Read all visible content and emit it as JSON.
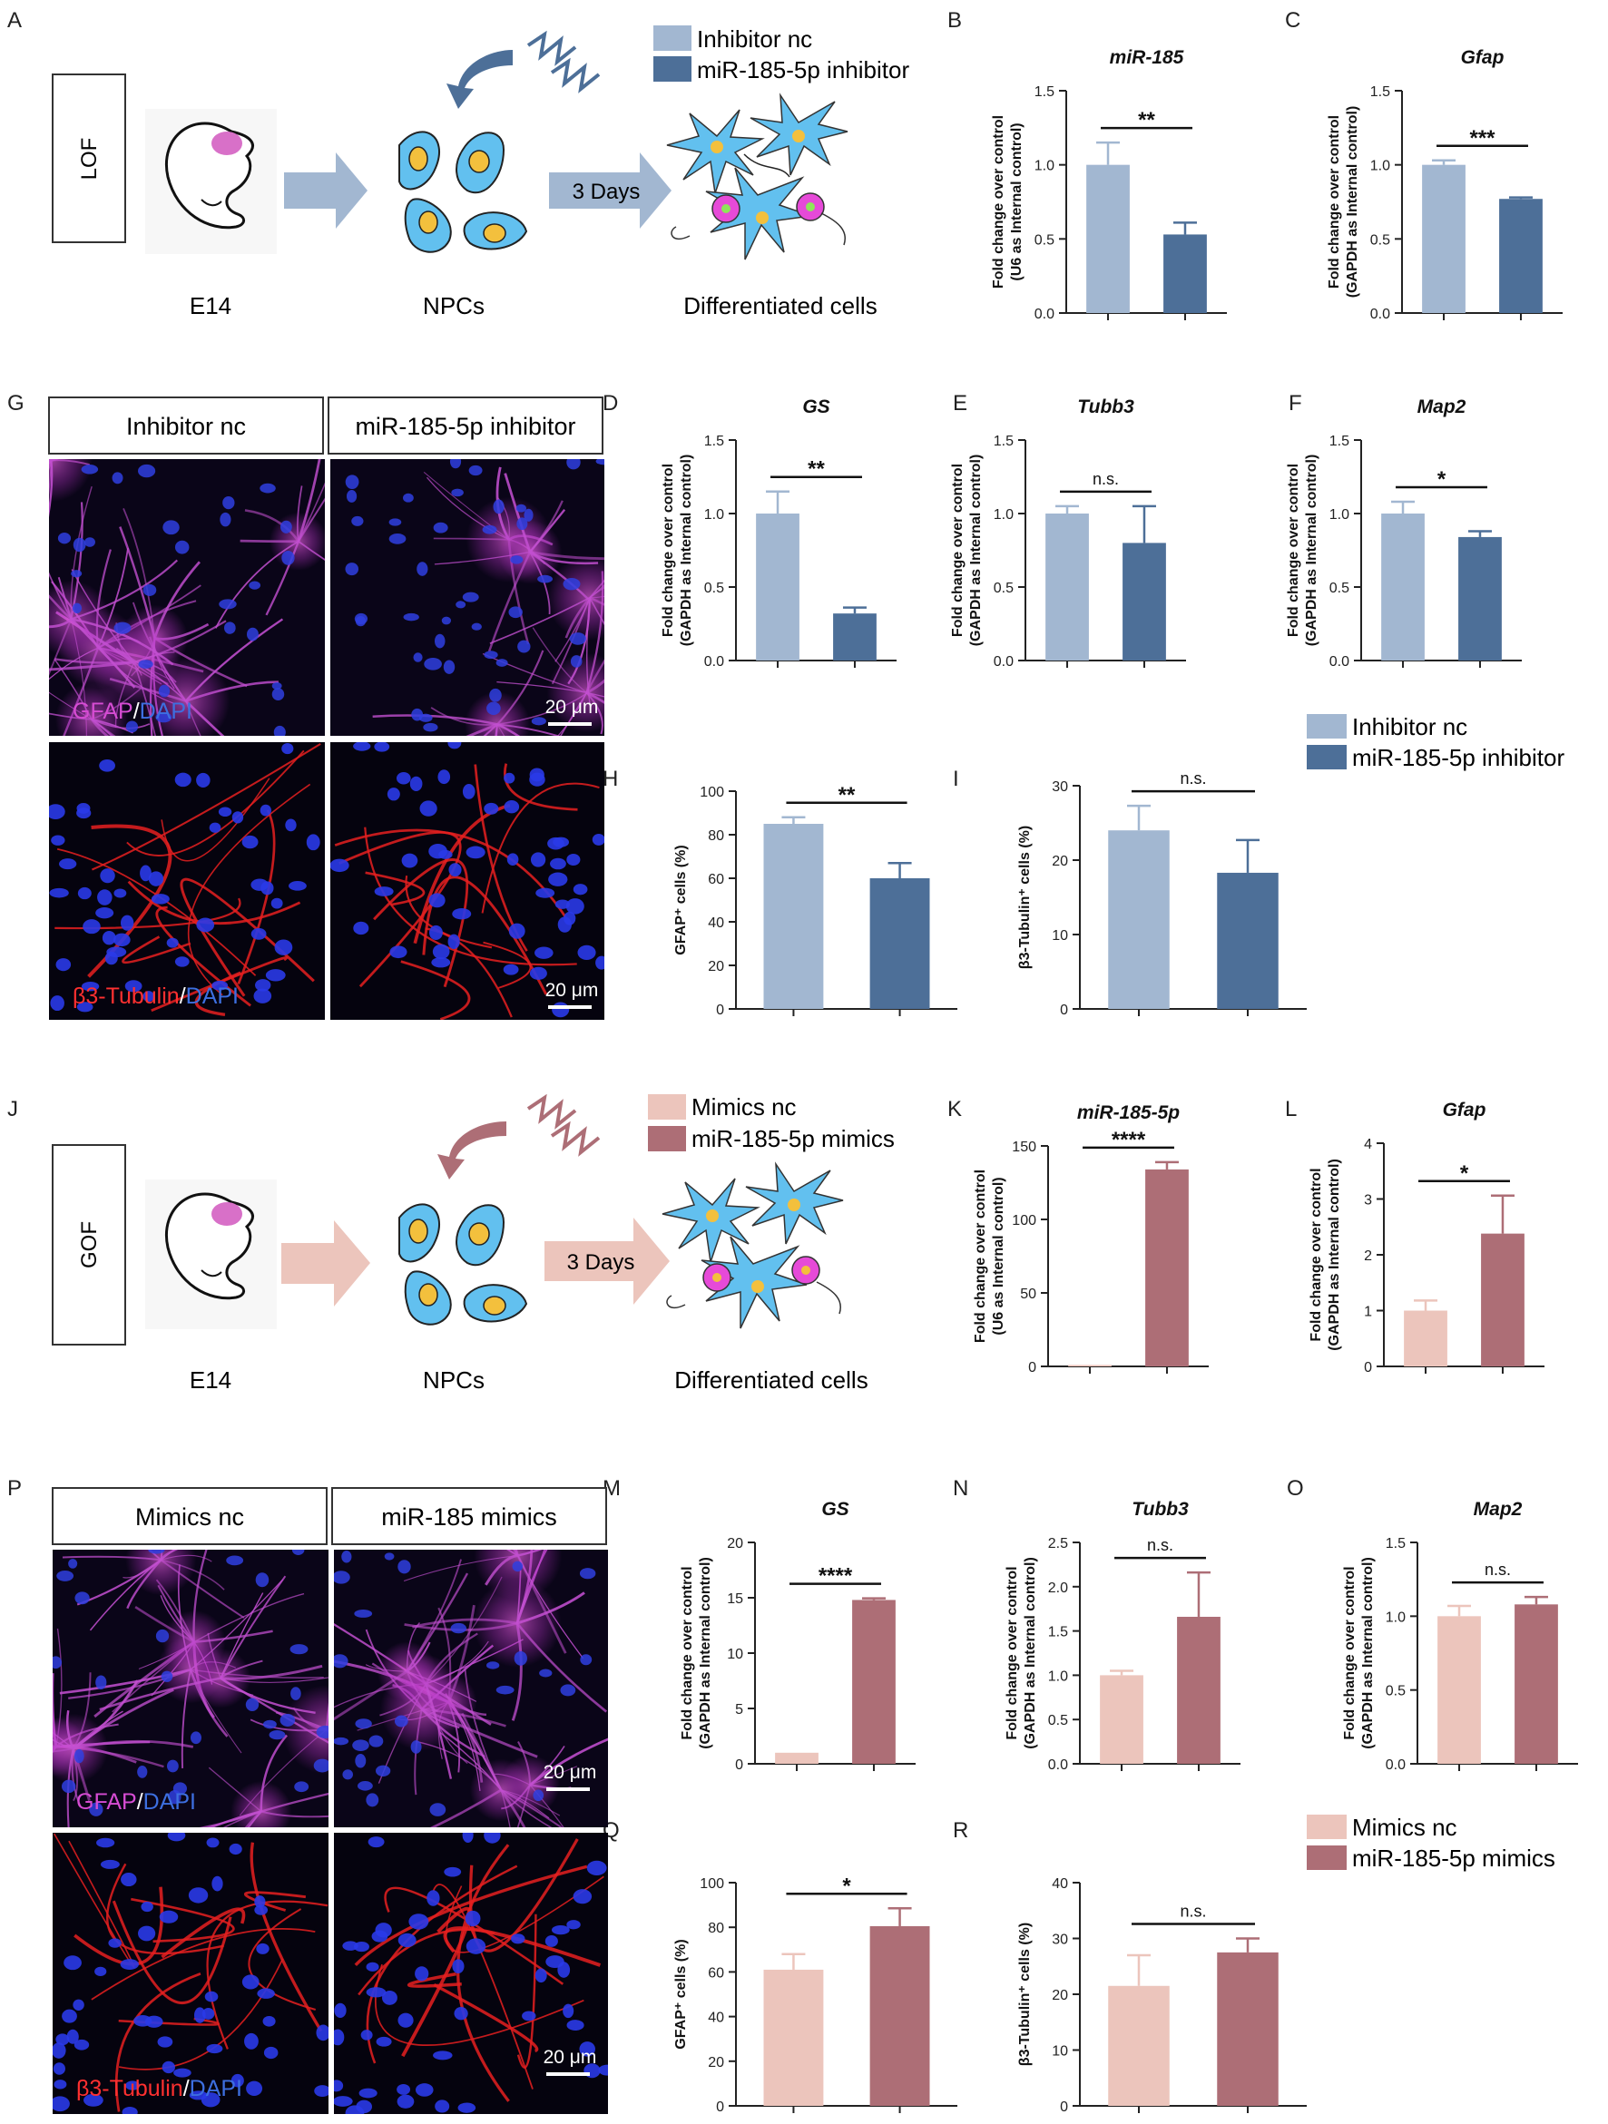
{
  "colors": {
    "lof_light": "#a2b7d1",
    "lof_dark": "#4d6f98",
    "gof_light": "#ecc5bc",
    "gof_dark": "#ad6e76",
    "cell_fill": "#62c0ef",
    "nucleus_fill": "#f3c03d",
    "magenta": "#e64ad8",
    "embryo_pink": "#d870c8"
  },
  "panel_letters": {
    "A": "A",
    "B": "B",
    "C": "C",
    "D": "D",
    "E": "E",
    "F": "F",
    "G": "G",
    "H": "H",
    "I": "I",
    "J": "J",
    "K": "K",
    "L": "L",
    "M": "M",
    "N": "N",
    "O": "O",
    "P": "P",
    "Q": "Q",
    "R": "R"
  },
  "schematics": {
    "lof": {
      "box_label": "LOF",
      "stage": "E14",
      "npcs": "NPCs",
      "days": "3 Days",
      "result": "Differentiated cells",
      "legend": [
        "Inhibitor nc",
        "miR-185-5p inhibitor"
      ]
    },
    "gof": {
      "box_label": "GOF",
      "stage": "E14",
      "npcs": "NPCs",
      "days": "3 Days",
      "result": "Differentiated cells",
      "legend": [
        "Mimics nc",
        "miR-185-5p mimics"
      ]
    }
  },
  "legends": {
    "lof": [
      "Inhibitor nc",
      "miR-185-5p inhibitor"
    ],
    "gof": [
      "Mimics nc",
      "miR-185-5p mimics"
    ]
  },
  "micrographs": {
    "G": {
      "headers": [
        "Inhibitor nc",
        "miR-185-5p inhibitor"
      ],
      "row1_label": [
        "GFAP",
        "/",
        "DAPI"
      ],
      "row2_label": [
        "β3-Tubulin",
        "/",
        "DAPI"
      ],
      "scale": "20 μm"
    },
    "P": {
      "headers": [
        "Mimics nc",
        "miR-185 mimics"
      ],
      "row1_label": [
        "GFAP",
        "/",
        "DAPI"
      ],
      "row2_label": [
        "β3-Tubulin",
        "/",
        "DAPI"
      ],
      "scale": "20 μm"
    }
  },
  "chart_data": [
    {
      "panel": "B",
      "type": "bar",
      "title": "miR-185",
      "ylabel": [
        "Fold change over control",
        "(U6 as Internal control)"
      ],
      "ylim": [
        0,
        1.5
      ],
      "ticks": [
        0.0,
        0.5,
        1.0,
        1.5
      ],
      "tick_labels": [
        "0.0",
        "0.5",
        "1.0",
        "1.5"
      ],
      "group": "lof",
      "values": [
        1.0,
        0.53
      ],
      "errors": [
        0.15,
        0.08
      ],
      "significance": "**"
    },
    {
      "panel": "C",
      "type": "bar",
      "title": "Gfap",
      "ylabel": [
        "Fold change over control",
        "(GAPDH as Internal control)"
      ],
      "ylim": [
        0,
        1.5
      ],
      "ticks": [
        0.0,
        0.5,
        1.0,
        1.5
      ],
      "tick_labels": [
        "0.0",
        "0.5",
        "1.0",
        "1.5"
      ],
      "group": "lof",
      "values": [
        1.0,
        0.77
      ],
      "errors": [
        0.03,
        0.01
      ],
      "significance": "***"
    },
    {
      "panel": "D",
      "type": "bar",
      "title": "GS",
      "ylabel": [
        "Fold change over control",
        "(GAPDH as Internal control)"
      ],
      "ylim": [
        0,
        1.5
      ],
      "ticks": [
        0.0,
        0.5,
        1.0,
        1.5
      ],
      "tick_labels": [
        "0.0",
        "0.5",
        "1.0",
        "1.5"
      ],
      "group": "lof",
      "values": [
        1.0,
        0.32
      ],
      "errors": [
        0.15,
        0.04
      ],
      "significance": "**"
    },
    {
      "panel": "E",
      "type": "bar",
      "title": "Tubb3",
      "ylabel": [
        "Fold change over control",
        "(GAPDH as Internal control)"
      ],
      "ylim": [
        0,
        1.5
      ],
      "ticks": [
        0.0,
        0.5,
        1.0,
        1.5
      ],
      "tick_labels": [
        "0.0",
        "0.5",
        "1.0",
        "1.5"
      ],
      "group": "lof",
      "values": [
        1.0,
        0.8
      ],
      "errors": [
        0.05,
        0.25
      ],
      "significance": "n.s."
    },
    {
      "panel": "F",
      "type": "bar",
      "title": "Map2",
      "ylabel": [
        "Fold change over control",
        "(GAPDH as Internal control)"
      ],
      "ylim": [
        0,
        1.5
      ],
      "ticks": [
        0.0,
        0.5,
        1.0,
        1.5
      ],
      "tick_labels": [
        "0.0",
        "0.5",
        "1.0",
        "1.5"
      ],
      "group": "lof",
      "values": [
        1.0,
        0.84
      ],
      "errors": [
        0.08,
        0.04
      ],
      "significance": "*"
    },
    {
      "panel": "H",
      "type": "bar",
      "title": "",
      "ylabel": [
        "GFAP⁺ cells (%)"
      ],
      "ylim": [
        0,
        100
      ],
      "ticks": [
        0,
        20,
        40,
        60,
        80,
        100
      ],
      "tick_labels": [
        "0",
        "20",
        "40",
        "60",
        "80",
        "100"
      ],
      "group": "lof",
      "values": [
        85,
        60
      ],
      "errors": [
        3,
        7
      ],
      "significance": "**"
    },
    {
      "panel": "I",
      "type": "bar",
      "title": "",
      "ylabel": [
        "β3-Tubulin⁺ cells (%)"
      ],
      "ylim": [
        0,
        30
      ],
      "ticks": [
        0,
        10,
        20,
        30
      ],
      "tick_labels": [
        "0",
        "10",
        "20",
        "30"
      ],
      "group": "lof",
      "values": [
        24,
        18.3
      ],
      "errors": [
        3.3,
        4.4
      ],
      "significance": "n.s."
    },
    {
      "panel": "K",
      "type": "bar",
      "title": "miR-185-5p",
      "ylabel": [
        "Fold change over control",
        "(U6 as Internal control)"
      ],
      "ylim": [
        0,
        150
      ],
      "ticks": [
        0,
        50,
        100,
        150
      ],
      "tick_labels": [
        "0",
        "50",
        "100",
        "150"
      ],
      "group": "gof",
      "values": [
        1,
        134
      ],
      "errors": [
        0,
        5
      ],
      "significance": "****"
    },
    {
      "panel": "L",
      "type": "bar",
      "title": "Gfap",
      "ylabel": [
        "Fold change over control",
        "(GAPDH as Internal control)"
      ],
      "ylim": [
        0,
        4
      ],
      "ticks": [
        0,
        1,
        2,
        3,
        4
      ],
      "tick_labels": [
        "0",
        "1",
        "2",
        "3",
        "4"
      ],
      "group": "gof",
      "values": [
        1.0,
        2.38
      ],
      "errors": [
        0.18,
        0.68
      ],
      "significance": "*"
    },
    {
      "panel": "M",
      "type": "bar",
      "title": "GS",
      "ylabel": [
        "Fold change over control",
        "(GAPDH as Internal control)"
      ],
      "ylim": [
        0,
        20
      ],
      "ticks": [
        0,
        5,
        10,
        15,
        20
      ],
      "tick_labels": [
        "0",
        "5",
        "10",
        "15",
        "20"
      ],
      "group": "gof",
      "values": [
        1.0,
        14.8
      ],
      "errors": [
        0,
        0.15
      ],
      "significance": "****"
    },
    {
      "panel": "N",
      "type": "bar",
      "title": "Tubb3",
      "ylabel": [
        "Fold change over control",
        "(GAPDH as Internal control)"
      ],
      "ylim": [
        0,
        2.5
      ],
      "ticks": [
        0.0,
        0.5,
        1.0,
        1.5,
        2.0,
        2.5
      ],
      "tick_labels": [
        "0.0",
        "0.5",
        "1.0",
        "1.5",
        "2.0",
        "2.5"
      ],
      "group": "gof",
      "values": [
        1.0,
        1.66
      ],
      "errors": [
        0.05,
        0.5
      ],
      "significance": "n.s."
    },
    {
      "panel": "O",
      "type": "bar",
      "title": "Map2",
      "ylabel": [
        "Fold change over control",
        "(GAPDH as Internal control)"
      ],
      "ylim": [
        0,
        1.5
      ],
      "ticks": [
        0.0,
        0.5,
        1.0,
        1.5
      ],
      "tick_labels": [
        "0.0",
        "0.5",
        "1.0",
        "1.5"
      ],
      "group": "gof",
      "values": [
        1.0,
        1.08
      ],
      "errors": [
        0.07,
        0.05
      ],
      "significance": "n.s."
    },
    {
      "panel": "Q",
      "type": "bar",
      "title": "",
      "ylabel": [
        "GFAP⁺ cells (%)"
      ],
      "ylim": [
        0,
        100
      ],
      "ticks": [
        0,
        20,
        40,
        60,
        80,
        100
      ],
      "tick_labels": [
        "0",
        "20",
        "40",
        "60",
        "80",
        "100"
      ],
      "group": "gof",
      "values": [
        61,
        80.5
      ],
      "errors": [
        7,
        8
      ],
      "significance": "*"
    },
    {
      "panel": "R",
      "type": "bar",
      "title": "",
      "ylabel": [
        "β3-Tubulin⁺ cells (%)"
      ],
      "ylim": [
        0,
        40
      ],
      "ticks": [
        0,
        10,
        20,
        30,
        40
      ],
      "tick_labels": [
        "0",
        "10",
        "20",
        "30",
        "40"
      ],
      "group": "gof",
      "values": [
        21.5,
        27.5
      ],
      "errors": [
        5.5,
        2.5
      ],
      "significance": "n.s."
    }
  ]
}
